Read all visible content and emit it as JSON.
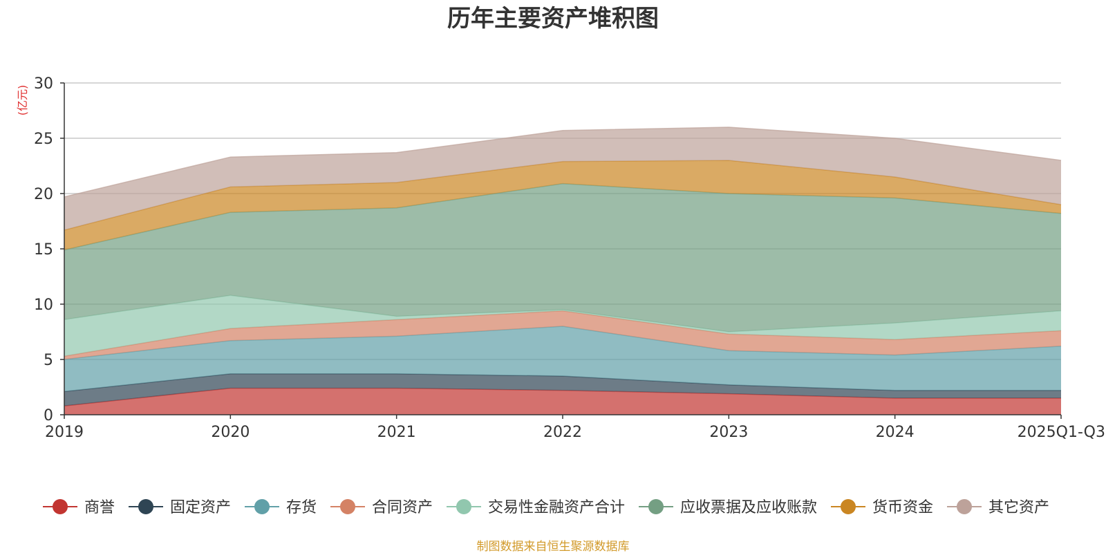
{
  "chart_data": {
    "type": "area",
    "stacked": true,
    "title": "历年主要资产堆积图",
    "unit_label": "(亿元)",
    "categories": [
      "2019",
      "2020",
      "2021",
      "2022",
      "2023",
      "2024",
      "2025Q1-Q3"
    ],
    "ylim": [
      0,
      30
    ],
    "yticks": [
      0,
      5,
      10,
      15,
      20,
      25,
      30
    ],
    "grid": true,
    "legend_position": "bottom",
    "series": [
      {
        "name": "商誉",
        "color": "#c23531",
        "values": [
          0.8,
          2.4,
          2.4,
          2.2,
          1.9,
          1.5,
          1.5
        ]
      },
      {
        "name": "固定资产",
        "color": "#2f4554",
        "values": [
          1.3,
          1.3,
          1.3,
          1.3,
          0.8,
          0.7,
          0.7
        ]
      },
      {
        "name": "存货",
        "color": "#61a0a8",
        "values": [
          2.9,
          3.0,
          3.4,
          4.5,
          3.1,
          3.2,
          4.0
        ]
      },
      {
        "name": "合同资产",
        "color": "#d48265",
        "values": [
          0.3,
          1.1,
          1.5,
          1.4,
          1.5,
          1.4,
          1.4
        ]
      },
      {
        "name": "交易性金融资产合计",
        "color": "#91c7ae",
        "values": [
          3.3,
          3.0,
          0.3,
          0.1,
          0.2,
          1.5,
          1.8
        ]
      },
      {
        "name": "应收票据及应收账款",
        "color": "#749f83",
        "values": [
          6.3,
          7.5,
          9.8,
          11.4,
          12.5,
          11.3,
          8.8
        ]
      },
      {
        "name": "货币资金",
        "color": "#ca8622",
        "values": [
          1.8,
          2.3,
          2.3,
          2.0,
          3.0,
          1.9,
          0.8
        ]
      },
      {
        "name": "其它资产",
        "color": "#bda29a",
        "values": [
          3.0,
          2.7,
          2.7,
          2.8,
          3.0,
          3.5,
          4.0
        ]
      }
    ]
  },
  "footer": {
    "source": "制图数据来自恒生聚源数据库"
  }
}
